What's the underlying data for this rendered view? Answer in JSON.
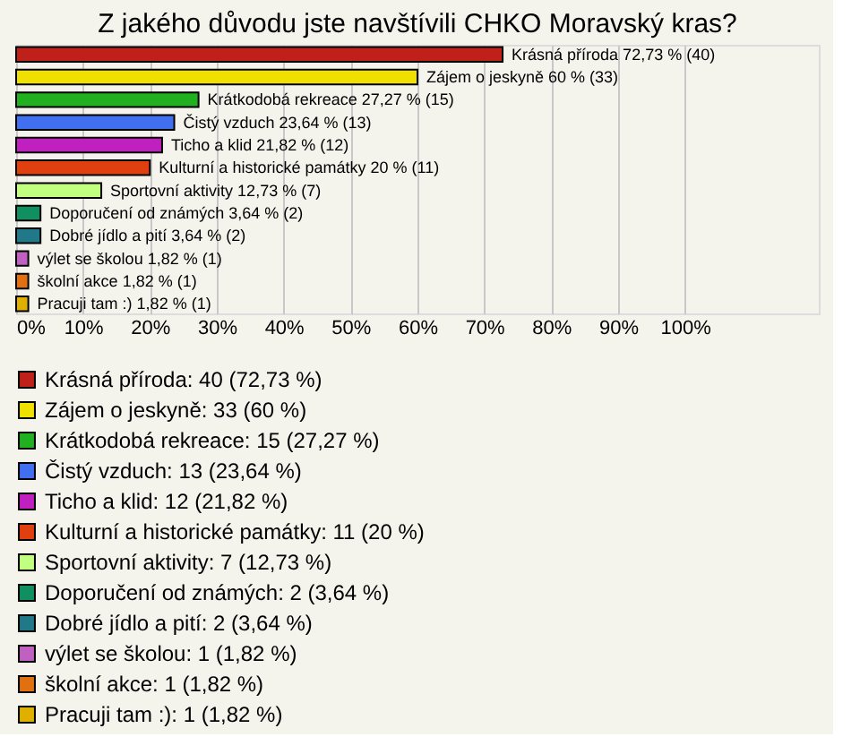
{
  "chart_data": {
    "type": "bar",
    "orientation": "horizontal",
    "title": "Z jakého důvodu jste navštívili CHKO Moravský kras?",
    "categories": [
      null,
      null,
      null,
      null,
      null,
      null,
      null,
      null,
      null,
      null,
      null,
      null
    ],
    "series": [
      {
        "name": "Krásná příroda: 40 (72,73 %)",
        "color": "#c0201a",
        "values": [
          72.73,
          null,
          null,
          null,
          null,
          null,
          null,
          null,
          null,
          null,
          null,
          null
        ],
        "value_labels": [
          "Krásná příroda 72,73 % (40)",
          null,
          null,
          null,
          null,
          null,
          null,
          null,
          null,
          null,
          null,
          null
        ]
      },
      {
        "name": "Zájem o jeskyně: 33 (60 %)",
        "color": "#f0e000",
        "values": [
          null,
          60,
          null,
          null,
          null,
          null,
          null,
          null,
          null,
          null,
          null,
          null
        ],
        "value_labels": [
          null,
          "Zájem o jeskyně 60 % (33)",
          null,
          null,
          null,
          null,
          null,
          null,
          null,
          null,
          null,
          null
        ]
      },
      {
        "name": "Krátkodobá rekreace: 15 (27,27 %)",
        "color": "#20b020",
        "values": [
          null,
          null,
          27.27,
          null,
          null,
          null,
          null,
          null,
          null,
          null,
          null,
          null
        ],
        "value_labels": [
          null,
          null,
          "Krátkodobá rekreace 27,27 % (15)",
          null,
          null,
          null,
          null,
          null,
          null,
          null,
          null,
          null
        ]
      },
      {
        "name": "Čistý vzduch: 13 (23,64 %)",
        "color": "#4070f0",
        "values": [
          null,
          null,
          null,
          23.64,
          null,
          null,
          null,
          null,
          null,
          null,
          null,
          null
        ],
        "value_labels": [
          null,
          null,
          null,
          "Čistý vzduch 23,64 % (13)",
          null,
          null,
          null,
          null,
          null,
          null,
          null,
          null
        ]
      },
      {
        "name": "Ticho a klid: 12 (21,82 %)",
        "color": "#c020c0",
        "values": [
          null,
          null,
          null,
          null,
          21.82,
          null,
          null,
          null,
          null,
          null,
          null,
          null
        ],
        "value_labels": [
          null,
          null,
          null,
          null,
          "Ticho a klid 21,82 % (12)",
          null,
          null,
          null,
          null,
          null,
          null,
          null
        ]
      },
      {
        "name": "Kulturní a historické památky: 11 (20 %)",
        "color": "#e04010",
        "values": [
          null,
          null,
          null,
          null,
          null,
          20,
          null,
          null,
          null,
          null,
          null,
          null
        ],
        "value_labels": [
          null,
          null,
          null,
          null,
          null,
          "Kulturní a historické památky 20 % (11)",
          null,
          null,
          null,
          null,
          null,
          null
        ]
      },
      {
        "name": "Sportovní aktivity: 7 (12,73 %)",
        "color": "#c0ff80",
        "values": [
          null,
          null,
          null,
          null,
          null,
          null,
          12.73,
          null,
          null,
          null,
          null,
          null
        ],
        "value_labels": [
          null,
          null,
          null,
          null,
          null,
          null,
          "Sportovní aktivity 12,73 % (7)",
          null,
          null,
          null,
          null,
          null
        ]
      },
      {
        "name": "Doporučení od známých: 2 (3,64 %)",
        "color": "#109060",
        "values": [
          null,
          null,
          null,
          null,
          null,
          null,
          null,
          3.64,
          null,
          null,
          null,
          null
        ],
        "value_labels": [
          null,
          null,
          null,
          null,
          null,
          null,
          null,
          "Doporučení od známých 3,64 % (2)",
          null,
          null,
          null,
          null
        ]
      },
      {
        "name": "Dobré jídlo a pití: 2 (3,64 %)",
        "color": "#207888",
        "values": [
          null,
          null,
          null,
          null,
          null,
          null,
          null,
          null,
          3.64,
          null,
          null,
          null
        ],
        "value_labels": [
          null,
          null,
          null,
          null,
          null,
          null,
          null,
          null,
          "Dobré jídlo a pití 3,64 % (2)",
          null,
          null,
          null
        ]
      },
      {
        "name": "výlet se školou: 1 (1,82 %)",
        "color": "#c060c0",
        "values": [
          null,
          null,
          null,
          null,
          null,
          null,
          null,
          null,
          null,
          1.82,
          null,
          null
        ],
        "value_labels": [
          null,
          null,
          null,
          null,
          null,
          null,
          null,
          null,
          null,
          "výlet se školou 1,82 % (1)",
          null,
          null
        ]
      },
      {
        "name": "školní akce: 1 (1,82 %)",
        "color": "#e07010",
        "values": [
          null,
          null,
          null,
          null,
          null,
          null,
          null,
          null,
          null,
          null,
          1.82,
          null
        ],
        "value_labels": [
          null,
          null,
          null,
          null,
          null,
          null,
          null,
          null,
          null,
          null,
          "školní akce 1,82 % (1)",
          null
        ]
      },
      {
        "name": "Pracuji tam :): 1 (1,82 %)",
        "color": "#e0b000",
        "values": [
          null,
          null,
          null,
          null,
          null,
          null,
          null,
          null,
          null,
          null,
          null,
          1.82
        ],
        "value_labels": [
          null,
          null,
          null,
          null,
          null,
          null,
          null,
          null,
          null,
          null,
          null,
          "Pracuji tam :) 1,82 % (1)"
        ]
      }
    ],
    "xlim": [
      0,
      120
    ],
    "xticks": [
      {
        "value": 0,
        "label": "0%"
      },
      {
        "value": 10,
        "label": "10%"
      },
      {
        "value": 20,
        "label": "20%"
      },
      {
        "value": 30,
        "label": "30%"
      },
      {
        "value": 40,
        "label": "40%"
      },
      {
        "value": 50,
        "label": "50%"
      },
      {
        "value": 60,
        "label": "60%"
      },
      {
        "value": 70,
        "label": "70%"
      },
      {
        "value": 80,
        "label": "80%"
      },
      {
        "value": 90,
        "label": "90%"
      },
      {
        "value": 100,
        "label": "100%"
      }
    ],
    "grid": "x",
    "legend": "bottom",
    "tick_labels": "x"
  }
}
